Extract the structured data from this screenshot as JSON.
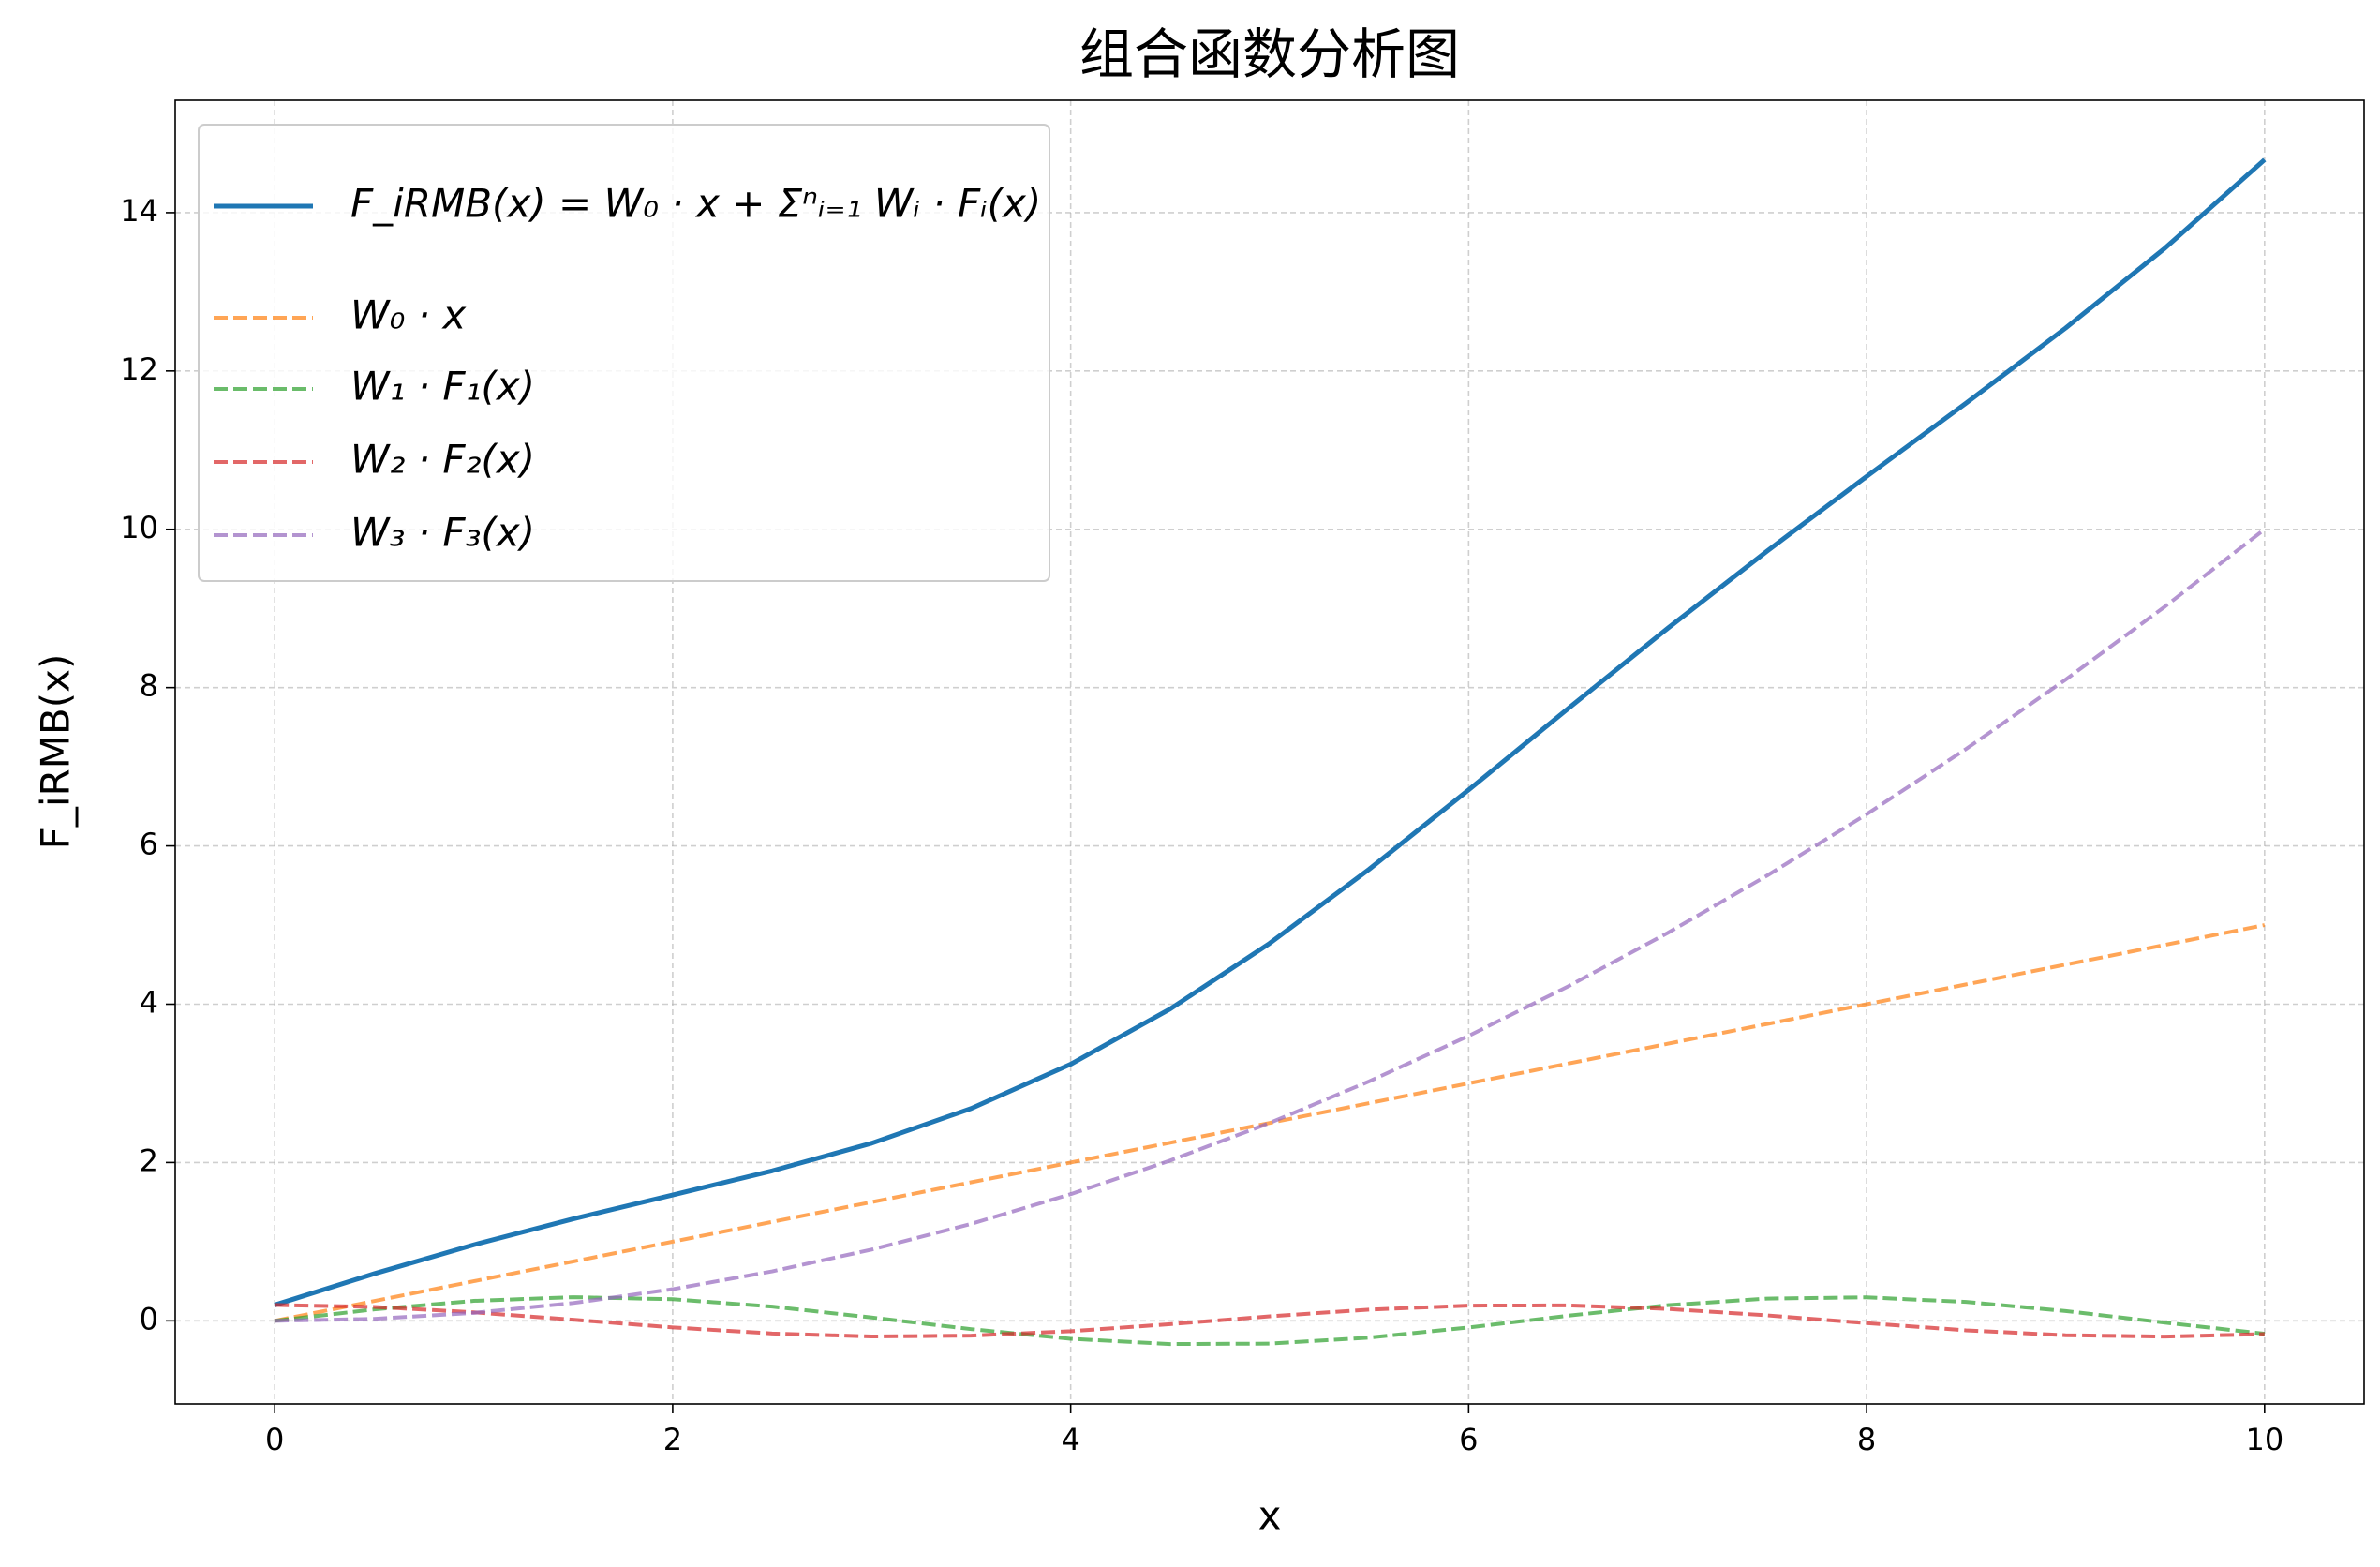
{
  "chart_data": {
    "type": "line",
    "title": "组合函数分析图",
    "xlabel": "x",
    "ylabel": "F_iRMB(x)",
    "x": [
      0,
      0.5,
      1,
      1.5,
      2,
      2.5,
      3,
      3.5,
      4,
      4.5,
      5,
      5.5,
      6,
      6.5,
      7,
      7.5,
      8,
      8.5,
      9,
      9.5,
      10
    ],
    "series": [
      {
        "name": "F_iRMB(x) = W₀ · x + Σⁿᵢ₌₁ Wᵢ · Fᵢ(x)",
        "color": "#1f77b4",
        "linestyle": "solid",
        "values": [
          0.2,
          0.595,
          0.96,
          1.288,
          1.59,
          1.895,
          2.244,
          2.683,
          3.242,
          3.94,
          4.769,
          5.705,
          6.708,
          7.735,
          8.748,
          9.725,
          10.668,
          11.594,
          12.542,
          13.553,
          14.669
        ]
      },
      {
        "name": "W₀ · x",
        "color": "#ff7f0e",
        "linestyle": "dashed",
        "values": [
          0,
          0.25,
          0.5,
          0.75,
          1,
          1.25,
          1.5,
          1.75,
          2,
          2.25,
          2.5,
          2.75,
          3,
          3.25,
          3.5,
          3.75,
          4,
          4.25,
          4.5,
          4.75,
          5
        ]
      },
      {
        "name": "W₁ · F₁(x)",
        "color": "#2ca02c",
        "linestyle": "dashed",
        "values": [
          0,
          0.144,
          0.252,
          0.299,
          0.273,
          0.18,
          0.042,
          -0.105,
          -0.227,
          -0.293,
          -0.288,
          -0.212,
          -0.084,
          0.065,
          0.197,
          0.281,
          0.297,
          0.239,
          0.124,
          -0.023,
          -0.163
        ]
      },
      {
        "name": "W₂ · F₂(x)",
        "color": "#d62728",
        "linestyle": "dashed",
        "values": [
          0.2,
          0.176,
          0.108,
          0.014,
          -0.083,
          -0.16,
          -0.198,
          -0.187,
          -0.131,
          -0.042,
          0.057,
          0.142,
          0.192,
          0.195,
          0.151,
          0.069,
          -0.029,
          -0.12,
          -0.182,
          -0.199,
          -0.168
        ]
      },
      {
        "name": "W₃ · F₃(x)",
        "color": "#9467bd",
        "linestyle": "dashed",
        "values": [
          0,
          0.025,
          0.1,
          0.225,
          0.4,
          0.625,
          0.9,
          1.225,
          1.6,
          2.025,
          2.5,
          3.025,
          3.6,
          4.225,
          4.9,
          5.625,
          6.4,
          7.225,
          8.1,
          9.025,
          10
        ]
      }
    ],
    "xlim": [
      -0.5,
      10.5
    ],
    "xticks": [
      0,
      2,
      4,
      6,
      8,
      10
    ],
    "ylim": [
      -1.05,
      15.42
    ],
    "yticks": [
      0,
      2,
      4,
      6,
      8,
      10,
      12,
      14
    ],
    "grid": true,
    "legend": "upper left"
  }
}
